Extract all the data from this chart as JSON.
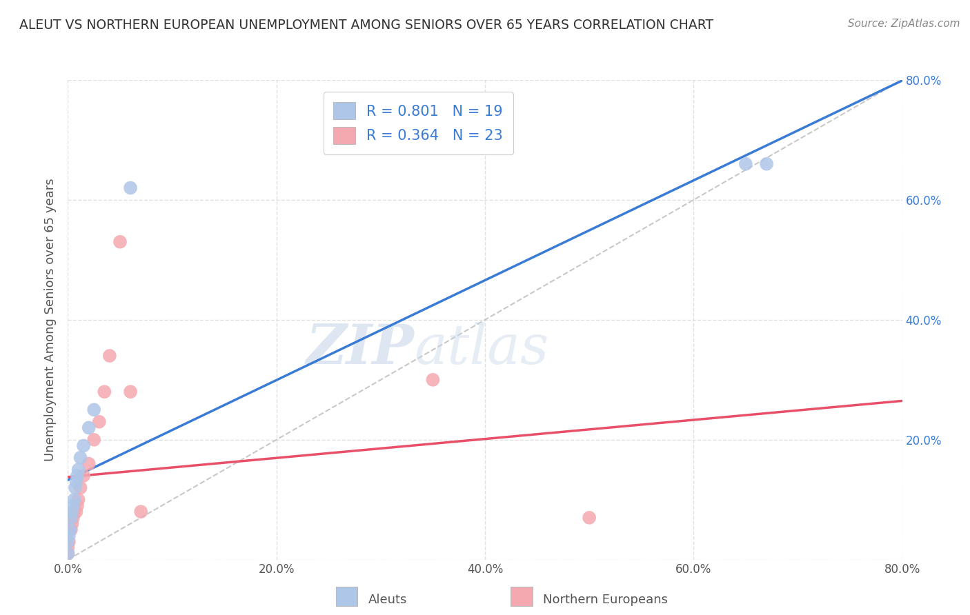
{
  "title": "ALEUT VS NORTHERN EUROPEAN UNEMPLOYMENT AMONG SENIORS OVER 65 YEARS CORRELATION CHART",
  "source": "Source: ZipAtlas.com",
  "ylabel": "Unemployment Among Seniors over 65 years",
  "xlim": [
    0.0,
    0.8
  ],
  "ylim": [
    0.0,
    0.8
  ],
  "xticks": [
    0.0,
    0.2,
    0.4,
    0.6,
    0.8
  ],
  "yticks": [
    0.0,
    0.2,
    0.4,
    0.6,
    0.8
  ],
  "xticklabels": [
    "0.0%",
    "20.0%",
    "40.0%",
    "60.0%",
    "80.0%"
  ],
  "yticklabels_right": [
    "",
    "20.0%",
    "40.0%",
    "60.0%",
    "80.0%"
  ],
  "aleut_color": "#aec6e8",
  "northern_color": "#f4a8b0",
  "line_aleut_color": "#3a7bd5",
  "line_northern_color": "#e8506a",
  "diagonal_color": "#c8c8c8",
  "R_aleut": 0.801,
  "N_aleut": 19,
  "R_northern": 0.364,
  "N_northern": 23,
  "aleut_x": [
    0.0,
    0.0,
    0.001,
    0.002,
    0.003,
    0.004,
    0.005,
    0.006,
    0.007,
    0.008,
    0.009,
    0.01,
    0.012,
    0.015,
    0.02,
    0.025,
    0.06,
    0.65,
    0.67
  ],
  "aleut_y": [
    0.01,
    0.03,
    0.04,
    0.05,
    0.07,
    0.08,
    0.09,
    0.1,
    0.12,
    0.13,
    0.14,
    0.15,
    0.17,
    0.19,
    0.22,
    0.25,
    0.62,
    0.66,
    0.66
  ],
  "northern_x": [
    0.0,
    0.0,
    0.001,
    0.002,
    0.003,
    0.004,
    0.005,
    0.006,
    0.008,
    0.009,
    0.01,
    0.012,
    0.015,
    0.02,
    0.025,
    0.03,
    0.035,
    0.04,
    0.05,
    0.06,
    0.07,
    0.35,
    0.5
  ],
  "northern_y": [
    0.01,
    0.02,
    0.03,
    0.05,
    0.05,
    0.06,
    0.07,
    0.08,
    0.08,
    0.09,
    0.1,
    0.12,
    0.14,
    0.16,
    0.2,
    0.23,
    0.28,
    0.34,
    0.53,
    0.28,
    0.08,
    0.3,
    0.07
  ],
  "watermark_zip": "ZIP",
  "watermark_atlas": "atlas",
  "background_color": "#ffffff",
  "grid_color": "#dddddd",
  "legend_label_aleut": "Aleuts",
  "legend_label_northern": "Northern Europeans"
}
